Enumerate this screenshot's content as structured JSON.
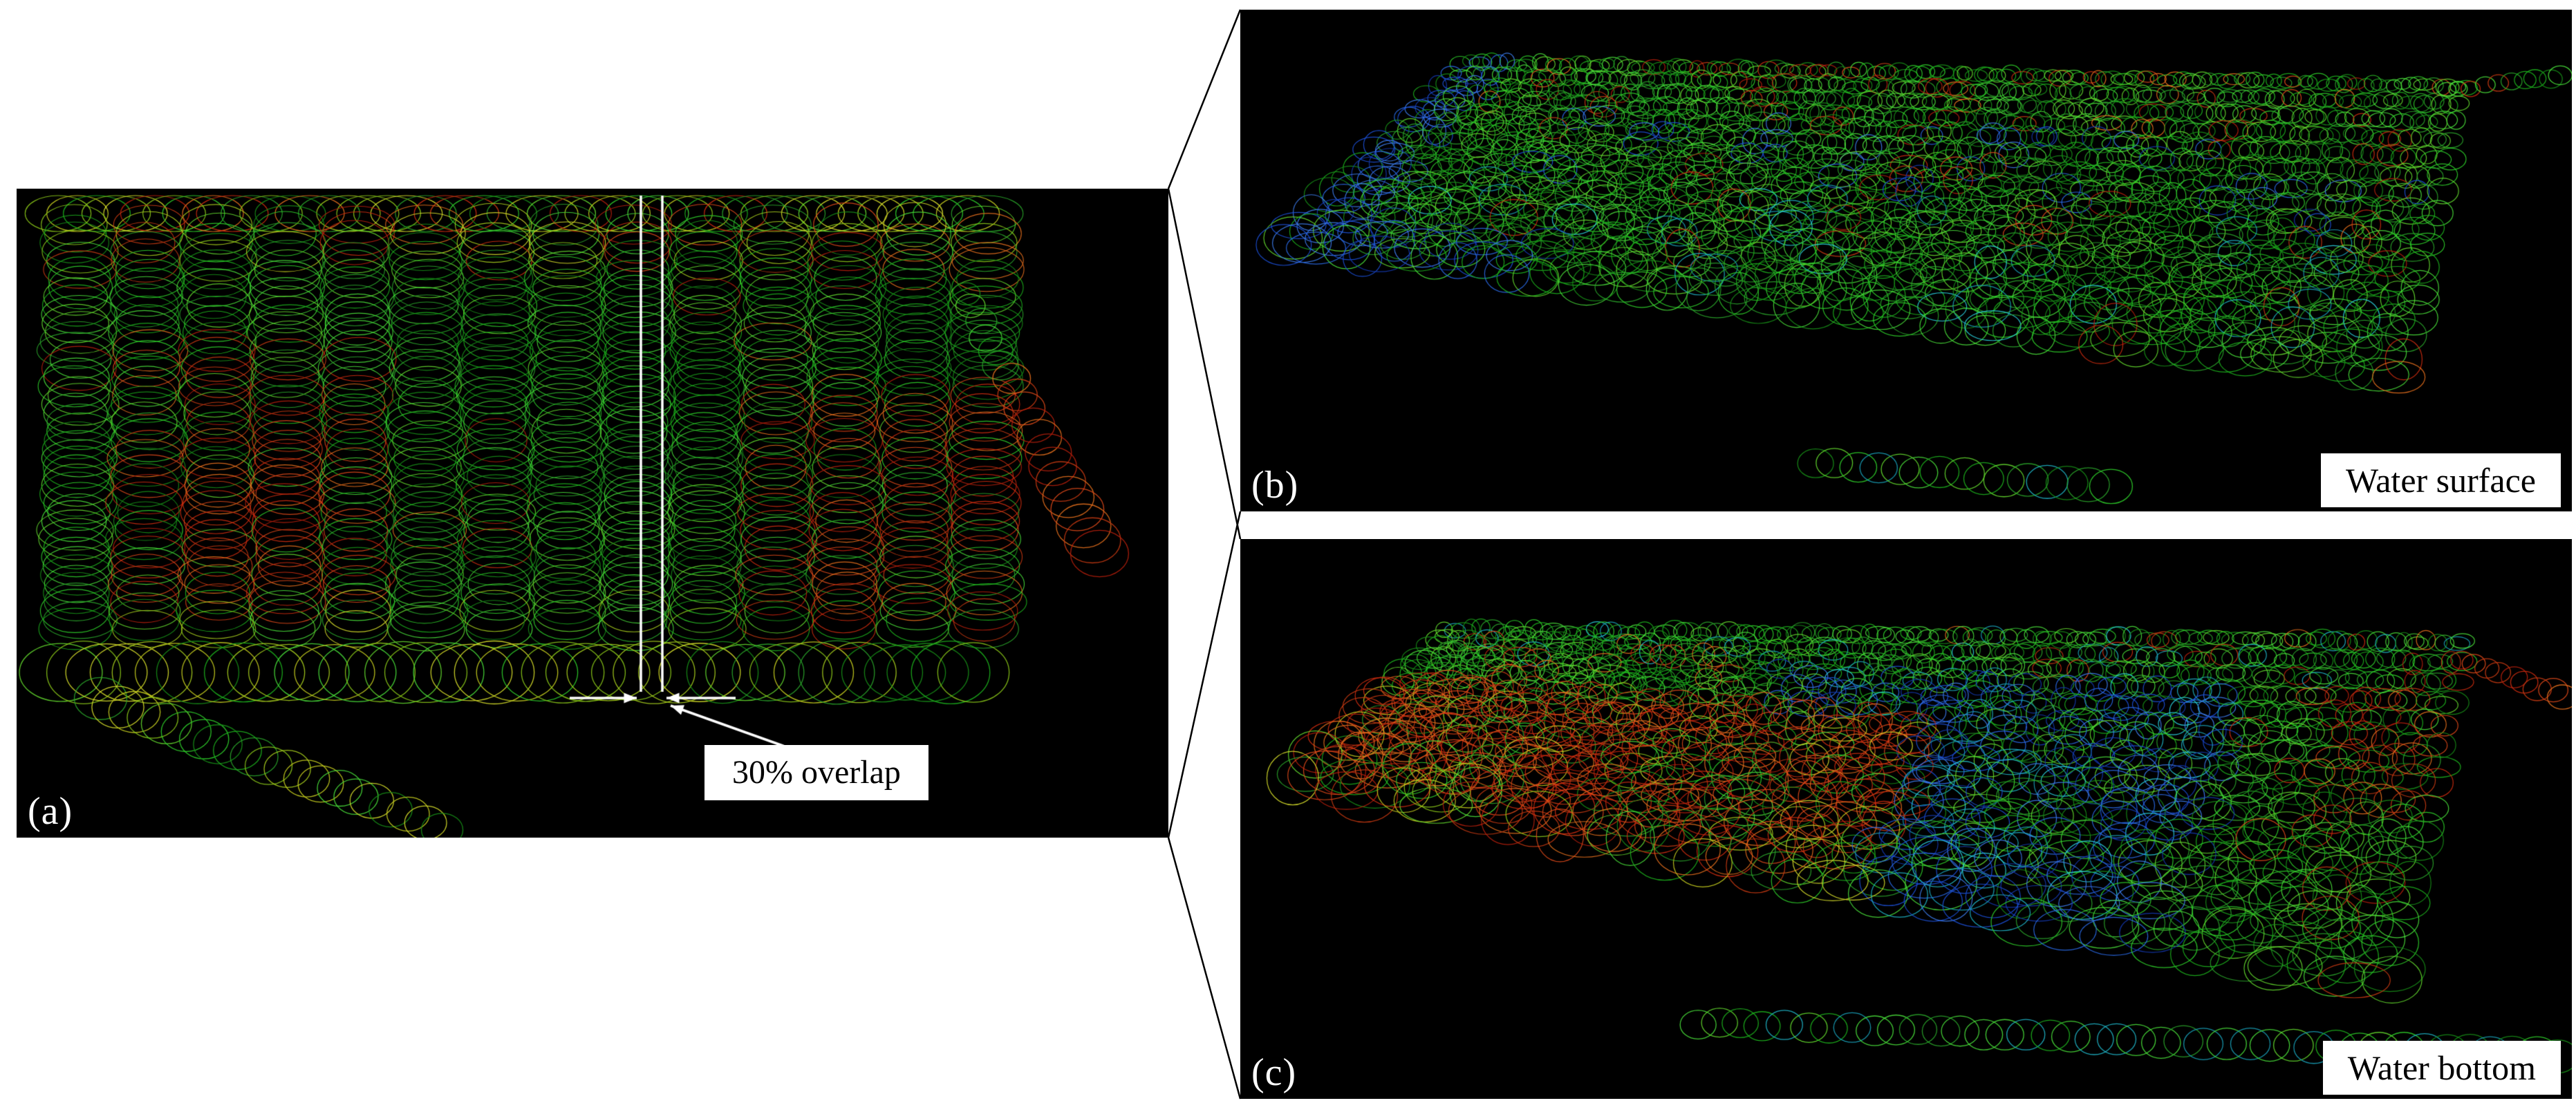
{
  "panels": {
    "a": {
      "label": "(a)",
      "annotation": "30% overlap"
    },
    "b": {
      "label": "(b)",
      "caption": "Water surface"
    },
    "c": {
      "label": "(c)",
      "caption": "Water bottom"
    }
  },
  "palette": {
    "background": "#ffffff",
    "panel_background": "#000000",
    "annotation_line": "#ffffff",
    "callout_line": "#000000",
    "label_text": "#ffffff",
    "caption_text": "#000000",
    "caption_background": "#ffffff",
    "greens": [
      "#1db31d",
      "#2fd02a",
      "#49e03a",
      "#178f17",
      "#63d92e",
      "#2aa52a"
    ],
    "yellows": [
      "#a8cf1d",
      "#c9d01f",
      "#8bc818",
      "#d8e02a"
    ],
    "reds": [
      "#d02c10",
      "#e0491a",
      "#b81f0c",
      "#e8701d",
      "#c93a12"
    ],
    "blues": [
      "#1c50d8",
      "#2a6ae8",
      "#1438b0",
      "#3d7df0"
    ],
    "cyans": [
      "#1fb6c9",
      "#2ad4e0",
      "#18a0b8"
    ]
  }
}
